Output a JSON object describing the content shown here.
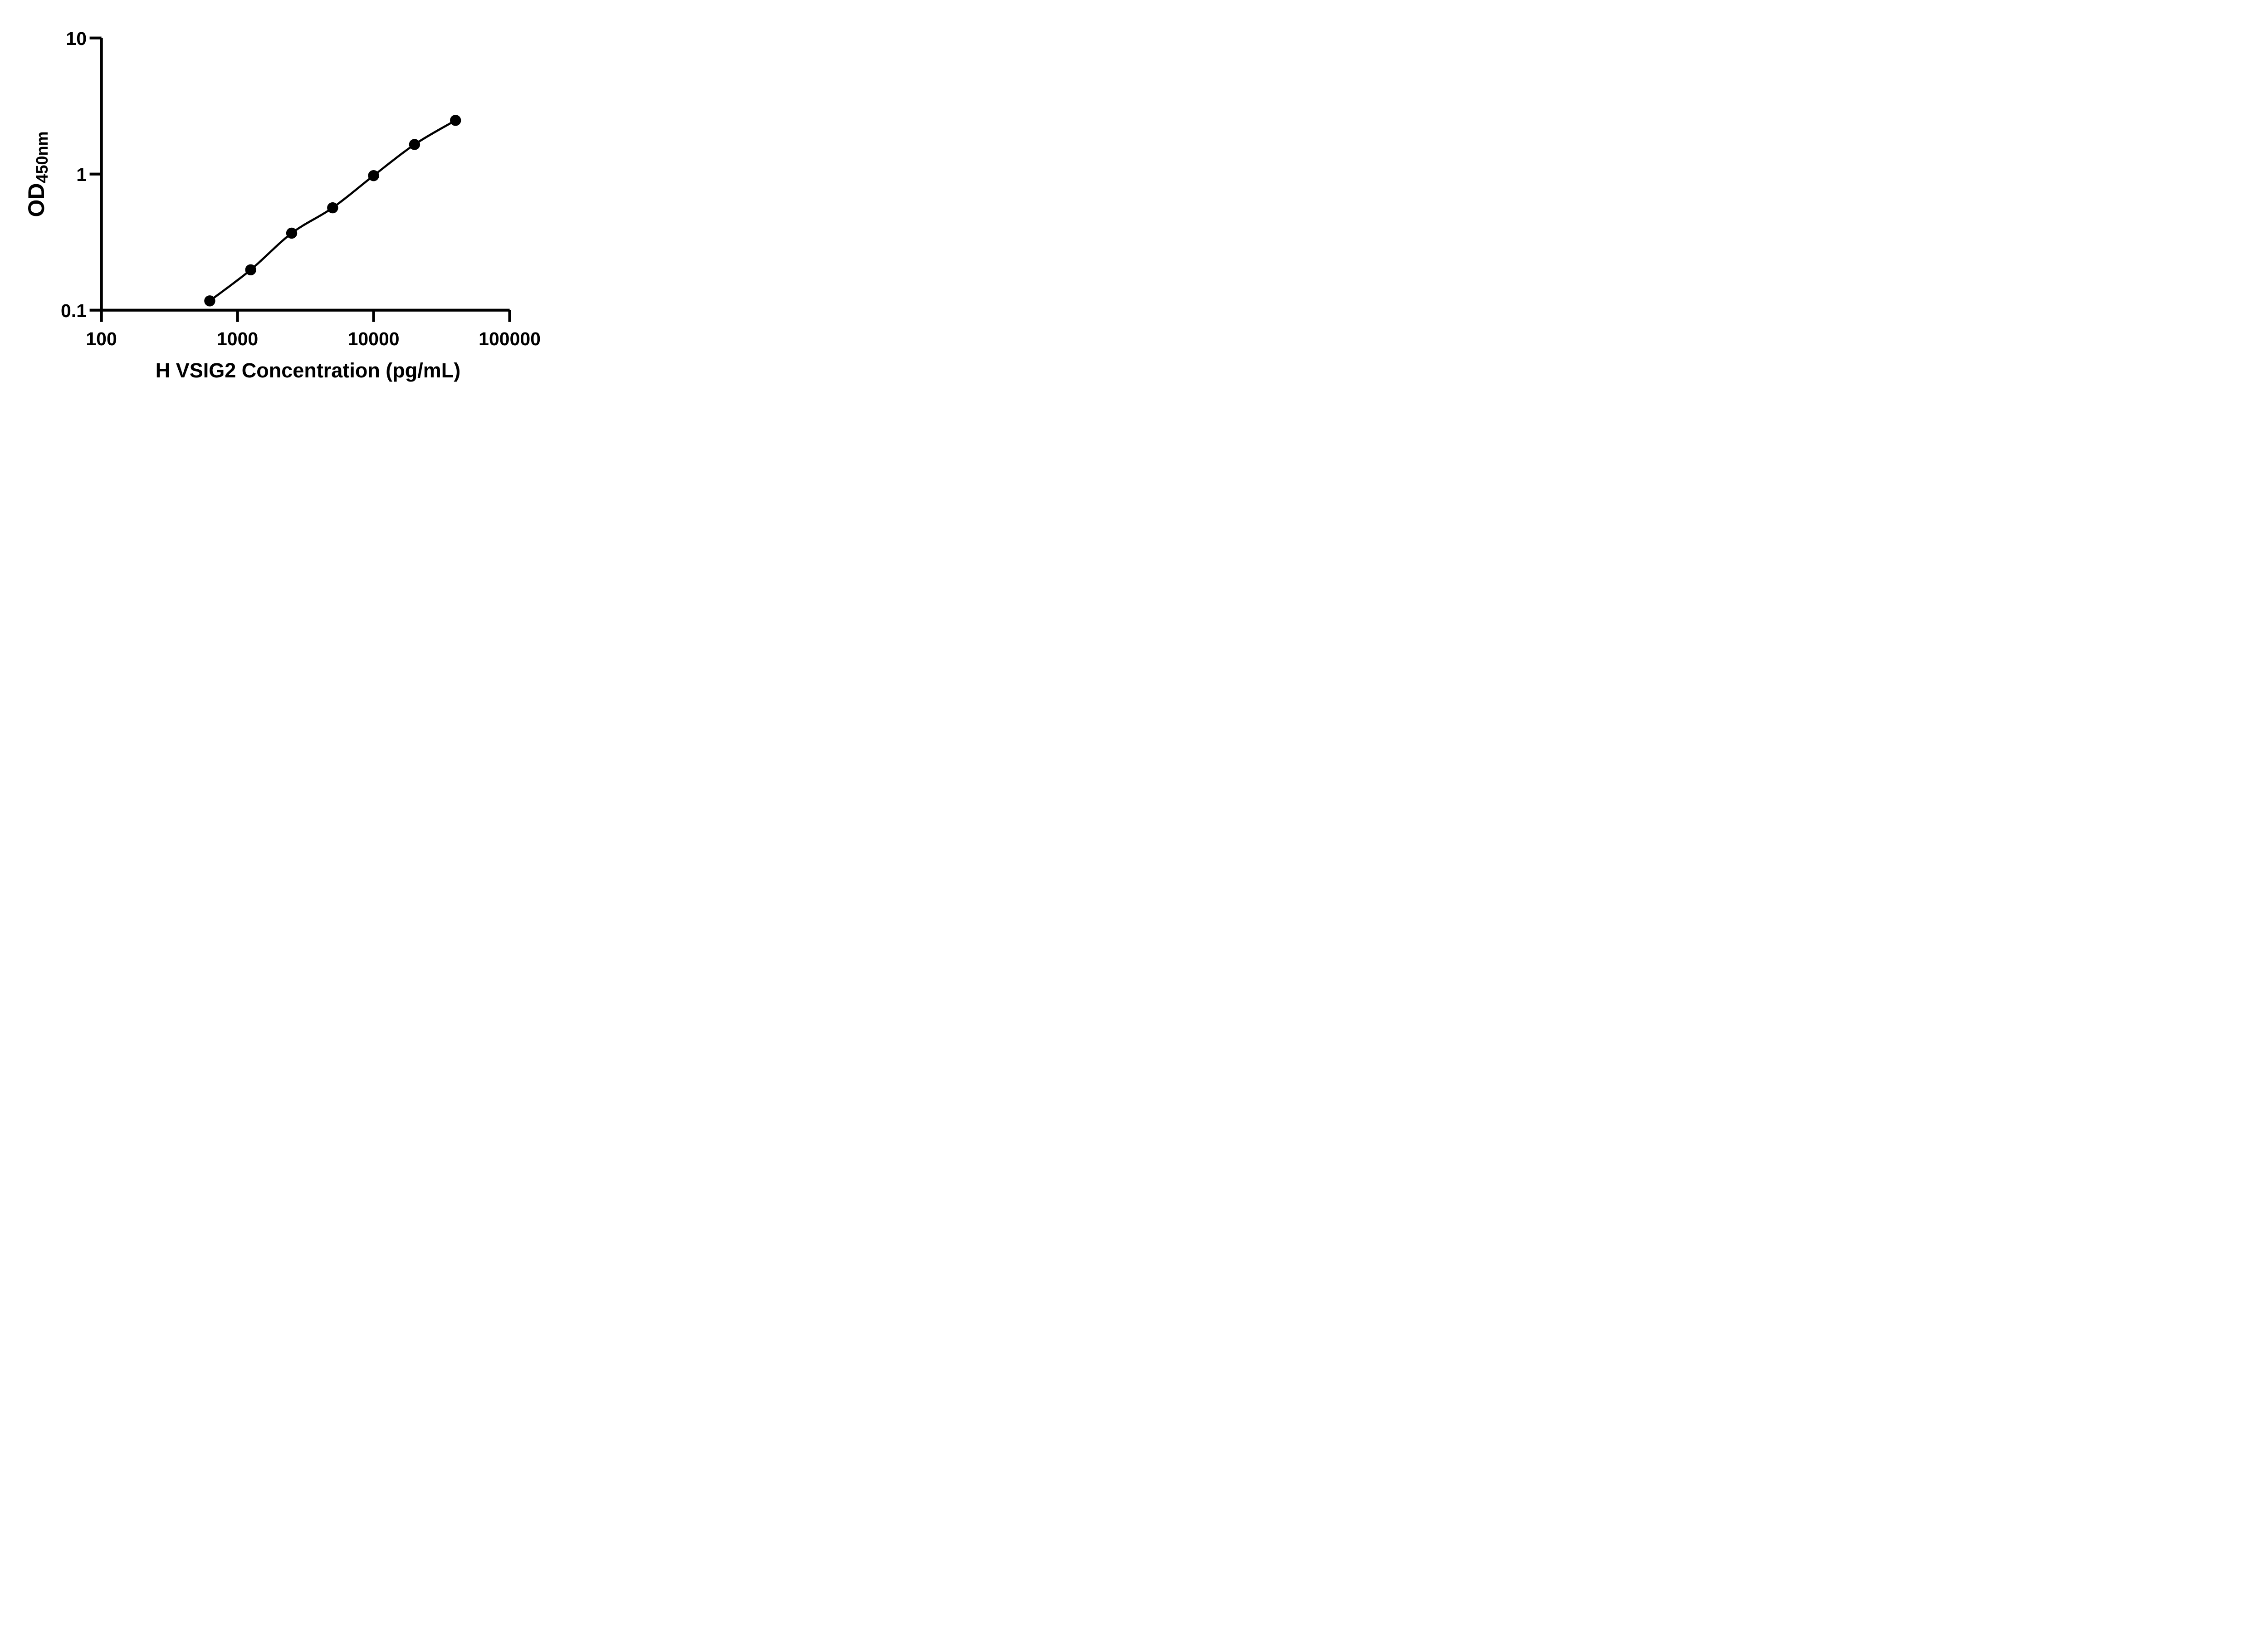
{
  "figure": {
    "background_color": "#ffffff",
    "ink_color": "#000000"
  },
  "chart_data": {
    "type": "scatter",
    "title": "",
    "xlabel": "H VSIG2 Concentration (pg/mL)",
    "ylabel_main": "OD",
    "ylabel_sub": "450nm",
    "x_scale": "log",
    "y_scale": "log",
    "xlim": [
      100,
      100000
    ],
    "ylim": [
      0.1,
      10
    ],
    "x_ticks": [
      100,
      1000,
      10000,
      100000
    ],
    "x_tick_labels": [
      "100",
      "1000",
      "10000",
      "100000"
    ],
    "y_ticks": [
      0.1,
      1,
      10
    ],
    "y_tick_labels": [
      "0.1",
      "1",
      "10"
    ],
    "grid": false,
    "legend": null,
    "marker": {
      "shape": "circle",
      "color": "#000000",
      "radius_px": 12.2
    },
    "line": {
      "color": "#000000",
      "smooth": true
    },
    "points": [
      {
        "x": 625,
        "y": 0.117
      },
      {
        "x": 1250,
        "y": 0.198
      },
      {
        "x": 2500,
        "y": 0.368
      },
      {
        "x": 5000,
        "y": 0.565
      },
      {
        "x": 10000,
        "y": 0.974
      },
      {
        "x": 20000,
        "y": 1.65
      },
      {
        "x": 40000,
        "y": 2.48
      }
    ]
  }
}
